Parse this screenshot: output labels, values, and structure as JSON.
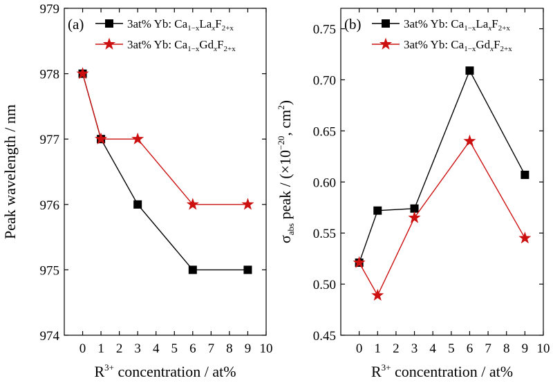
{
  "chart_data": [
    {
      "type": "line",
      "panel_label": "(a)",
      "xlabel": "R³⁺ concentration / at%",
      "ylabel": "Peak wavelength / nm",
      "xlim": [
        -1,
        10
      ],
      "ylim": [
        974,
        979
      ],
      "xticks": [
        0,
        1,
        2,
        3,
        4,
        5,
        6,
        7,
        8,
        9,
        10
      ],
      "yticks": [
        974,
        975,
        976,
        977,
        978,
        979
      ],
      "legend_position": "top-left",
      "series": [
        {
          "name": "3at% Yb: Ca1−xLaxF2+x",
          "marker": "square",
          "color": "#000000",
          "x": [
            0,
            1,
            3,
            6,
            9
          ],
          "y": [
            978,
            977,
            976,
            975,
            975
          ]
        },
        {
          "name": "3at% Yb: Ca1−xGdxF2+x",
          "marker": "star",
          "color": "#cc1010",
          "x": [
            0,
            1,
            3,
            6,
            9
          ],
          "y": [
            978,
            977,
            977,
            976,
            976
          ]
        }
      ]
    },
    {
      "type": "line",
      "panel_label": "(b)",
      "xlabel": "R³⁺ concentration / at%",
      "ylabel": "σabs peak / (×10⁻²⁰, cm²)",
      "xlim": [
        -1,
        10
      ],
      "ylim": [
        0.45,
        0.77
      ],
      "xticks": [
        0,
        1,
        2,
        3,
        4,
        5,
        6,
        7,
        8,
        9,
        10
      ],
      "yticks": [
        0.45,
        0.5,
        0.55,
        0.6,
        0.65,
        0.7,
        0.75
      ],
      "legend_position": "top-left",
      "series": [
        {
          "name": "3at% Yb: Ca1−xLaxF2+x",
          "marker": "square",
          "color": "#000000",
          "x": [
            0,
            1,
            3,
            6,
            9
          ],
          "y": [
            0.521,
            0.572,
            0.574,
            0.709,
            0.607
          ]
        },
        {
          "name": "3at% Yb: Ca1−xGdxF2+x",
          "marker": "star",
          "color": "#cc1010",
          "x": [
            0,
            1,
            3,
            6,
            9
          ],
          "y": [
            0.521,
            0.489,
            0.565,
            0.64,
            0.545
          ]
        }
      ]
    }
  ]
}
